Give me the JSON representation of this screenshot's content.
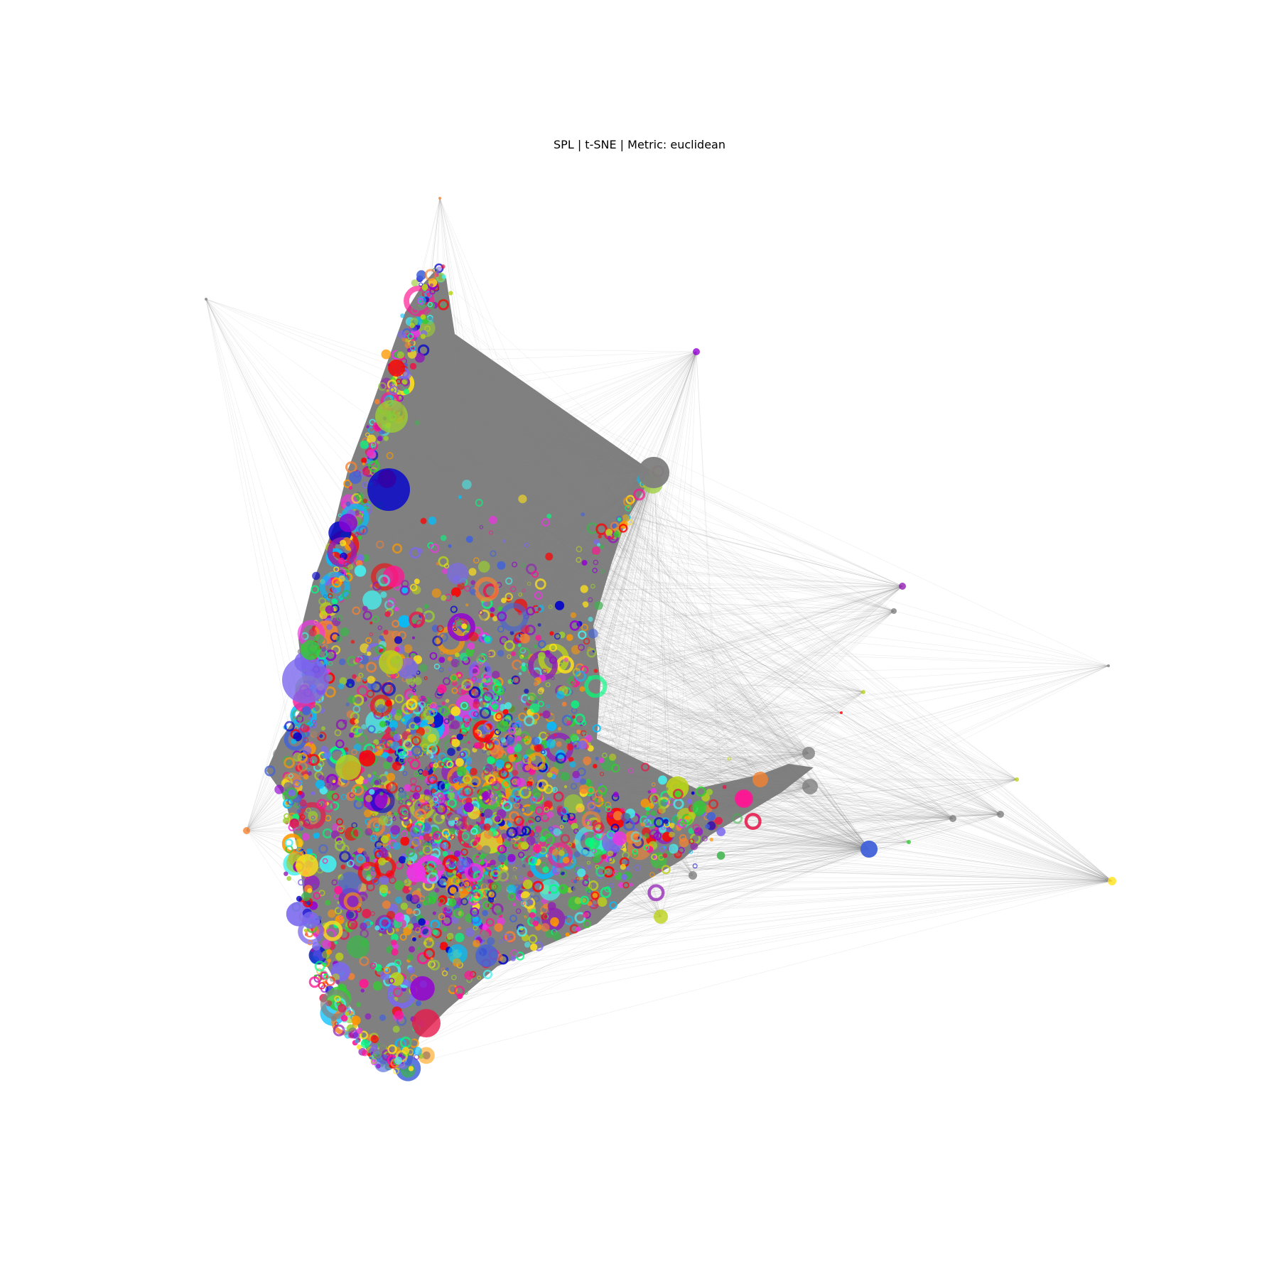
{
  "figure": {
    "title": "SPL | t-SNE | Metric: euclidean"
  },
  "colors": {
    "background": "#ffffff",
    "edge": "#808080",
    "palette": [
      "#e6194b",
      "#ff0000",
      "#f58231",
      "#ff9900",
      "#ffe119",
      "#bcd21a",
      "#9acd32",
      "#3cb44b",
      "#32cd32",
      "#00ff7f",
      "#46f0f0",
      "#00bfff",
      "#4363d8",
      "#0000cd",
      "#7b68ee",
      "#911eb4",
      "#9400d3",
      "#f032e6",
      "#ff1493",
      "#808080"
    ]
  }
}
